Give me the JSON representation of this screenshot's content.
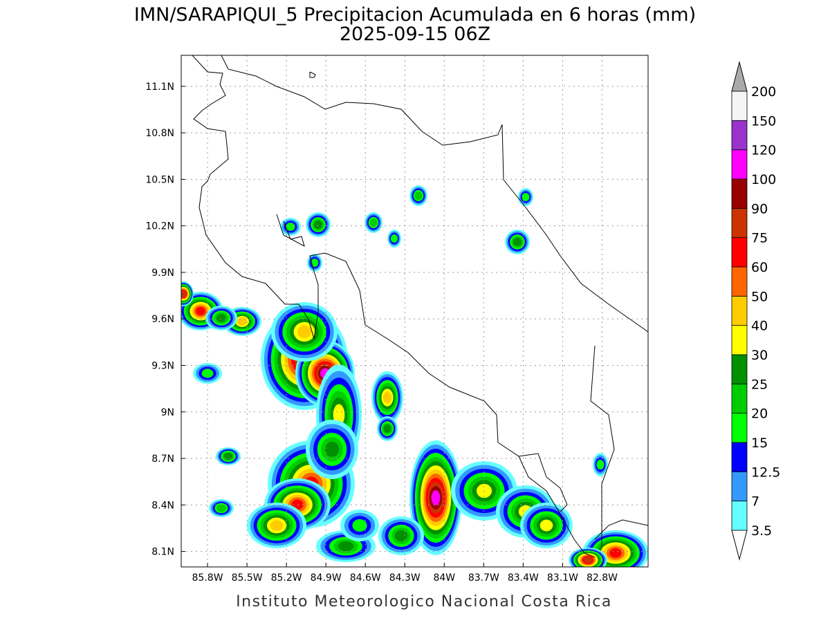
{
  "header": {
    "title": "IMN/SARAPIQUI_5 Precipitacion Acumulada en 6 horas (mm)",
    "subtitle": "2025-09-15 06Z"
  },
  "map": {
    "lon_range": [
      -86.0,
      -82.45
    ],
    "lat_range": [
      8.0,
      11.3
    ],
    "lon_ticks": [
      {
        "value": -85.8,
        "label": "85.8W"
      },
      {
        "value": -85.5,
        "label": "85.5W"
      },
      {
        "value": -85.2,
        "label": "85.2W"
      },
      {
        "value": -84.9,
        "label": "84.9W"
      },
      {
        "value": -84.6,
        "label": "84.6W"
      },
      {
        "value": -84.3,
        "label": "84.3W"
      },
      {
        "value": -84.0,
        "label": "84W"
      },
      {
        "value": -83.7,
        "label": "83.7W"
      },
      {
        "value": -83.4,
        "label": "83.4W"
      },
      {
        "value": -83.1,
        "label": "83.1W"
      },
      {
        "value": -82.8,
        "label": "82.8W"
      }
    ],
    "lat_ticks": [
      {
        "value": 8.1,
        "label": "8.1N"
      },
      {
        "value": 8.4,
        "label": "8.4N"
      },
      {
        "value": 8.7,
        "label": "8.7N"
      },
      {
        "value": 9.0,
        "label": "9N"
      },
      {
        "value": 9.3,
        "label": "9.3N"
      },
      {
        "value": 9.6,
        "label": "9.6N"
      },
      {
        "value": 9.9,
        "label": "9.9N"
      },
      {
        "value": 10.2,
        "label": "10.2N"
      },
      {
        "value": 10.5,
        "label": "10.5N"
      },
      {
        "value": 10.8,
        "label": "10.8N"
      },
      {
        "value": 11.1,
        "label": "11.1N"
      }
    ]
  },
  "colorbar": {
    "levels": [
      3.5,
      7,
      12.5,
      15,
      20,
      25,
      30,
      40,
      50,
      60,
      75,
      90,
      100,
      120,
      150,
      200
    ],
    "colors": [
      "#66ffff",
      "#3399ff",
      "#0000ff",
      "#00ff00",
      "#00cc00",
      "#009000",
      "#ffff00",
      "#ffcc00",
      "#ff6600",
      "#ff0000",
      "#cc3300",
      "#990000",
      "#ff00ff",
      "#9933cc",
      "#f5f5f5"
    ],
    "under_color": "#ffffff",
    "over_color": "#aaaaaa"
  },
  "footer": "Instituto Meteorologico Nacional Costa Rica"
}
